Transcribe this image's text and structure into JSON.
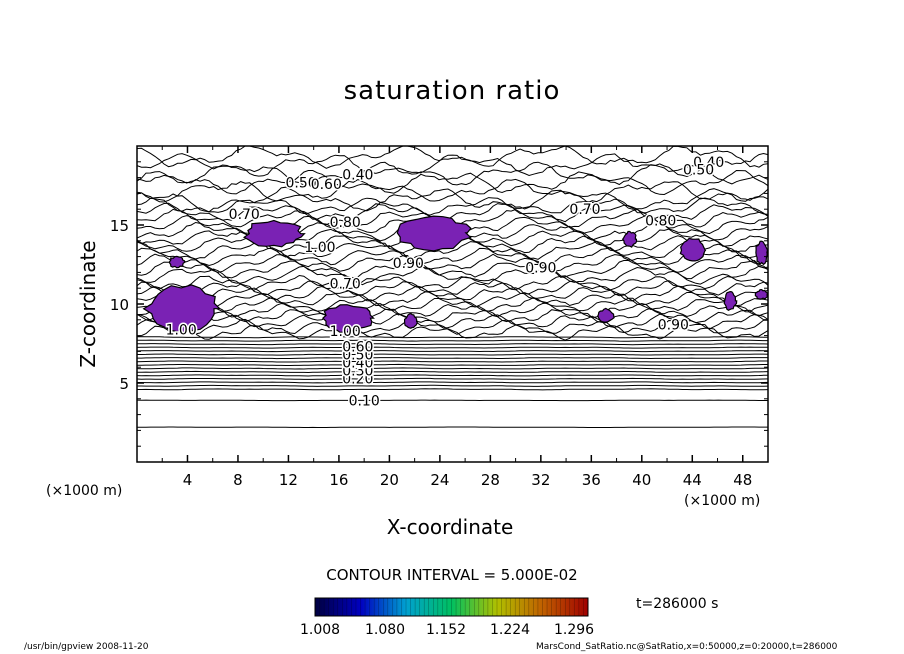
{
  "chart_data": {
    "type": "contour",
    "title": "saturation ratio",
    "xlabel": "X-coordinate",
    "ylabel": "Z-coordinate",
    "x_unit": "(×1000 m)",
    "xlim": [
      0,
      50
    ],
    "ylim": [
      0,
      20
    ],
    "x_ticks": [
      4,
      8,
      12,
      16,
      20,
      24,
      28,
      32,
      36,
      40,
      44,
      48
    ],
    "y_ticks": [
      5,
      10,
      15
    ],
    "contour_interval": "CONTOUR INTERVAL = 5.000E-02",
    "contour_labels": [
      {
        "text": "0.10",
        "x": 18,
        "z": 3.9
      },
      {
        "text": "0.20",
        "x": 17.5,
        "z": 5.3
      },
      {
        "text": "0.30",
        "x": 17.5,
        "z": 5.8
      },
      {
        "text": "0.40",
        "x": 17.5,
        "z": 6.3
      },
      {
        "text": "0.50",
        "x": 17.5,
        "z": 6.8
      },
      {
        "text": "0.60",
        "x": 17.5,
        "z": 7.3
      },
      {
        "text": "0.70",
        "x": 16.5,
        "z": 11.3
      },
      {
        "text": "0.70",
        "x": 35.5,
        "z": 16.0
      },
      {
        "text": "0.80",
        "x": 16.5,
        "z": 15.2
      },
      {
        "text": "0.80",
        "x": 41.5,
        "z": 15.3
      },
      {
        "text": "0.90",
        "x": 21.5,
        "z": 12.6
      },
      {
        "text": "0.90",
        "x": 32,
        "z": 12.3
      },
      {
        "text": "0.90",
        "x": 42.5,
        "z": 8.7
      },
      {
        "text": "1.00",
        "x": 14.5,
        "z": 13.6
      },
      {
        "text": "1.00",
        "x": 3.5,
        "z": 8.4
      },
      {
        "text": "1.00",
        "x": 16.5,
        "z": 8.3
      },
      {
        "text": "0.70",
        "x": 8.5,
        "z": 15.7
      },
      {
        "text": "0.50",
        "x": 13,
        "z": 17.7
      },
      {
        "text": "0.60",
        "x": 15,
        "z": 17.6
      },
      {
        "text": "0.40",
        "x": 17.5,
        "z": 18.2
      },
      {
        "text": "0.40",
        "x": 45.3,
        "z": 19.0
      },
      {
        "text": "0.50",
        "x": 44.5,
        "z": 18.5
      }
    ],
    "filled_regions": [
      {
        "x": [
          0.5,
          6.5
        ],
        "z": [
          8.2,
          11.2
        ]
      },
      {
        "x": [
          2.5,
          3.8
        ],
        "z": [
          12.3,
          13.0
        ]
      },
      {
        "x": [
          8.5,
          13.2
        ],
        "z": [
          13.6,
          15.3
        ]
      },
      {
        "x": [
          20.5,
          26.5
        ],
        "z": [
          13.4,
          15.6
        ]
      },
      {
        "x": [
          14.5,
          18.8
        ],
        "z": [
          8.2,
          10.0
        ]
      },
      {
        "x": [
          21.2,
          22.2
        ],
        "z": [
          8.4,
          9.4
        ]
      },
      {
        "x": [
          36.5,
          37.8
        ],
        "z": [
          8.8,
          9.7
        ]
      },
      {
        "x": [
          38.5,
          39.6
        ],
        "z": [
          13.6,
          14.6
        ]
      },
      {
        "x": [
          43.0,
          45.0
        ],
        "z": [
          12.6,
          14.2
        ]
      },
      {
        "x": [
          46.5,
          47.5
        ],
        "z": [
          9.6,
          10.8
        ]
      },
      {
        "x": [
          49.0,
          50.0
        ],
        "z": [
          12.5,
          14.0
        ]
      },
      {
        "x": [
          49.0,
          50.0
        ],
        "z": [
          10.3,
          10.9
        ]
      }
    ],
    "colorbar": {
      "labels": [
        "1.008",
        "1.080",
        "1.152",
        "1.224",
        "1.296"
      ],
      "colors": [
        "#000040",
        "#0000c0",
        "#00a0d0",
        "#00c060",
        "#b0c000",
        "#c06000",
        "#a00000"
      ]
    },
    "fill_color": "#7a22b4",
    "time_label": "t=286000 s"
  },
  "footer": {
    "left": "/usr/bin/gpview   2008-11-20",
    "right": "MarsCond_SatRatio.nc@SatRatio,x=0:50000,z=0:20000,t=286000"
  }
}
